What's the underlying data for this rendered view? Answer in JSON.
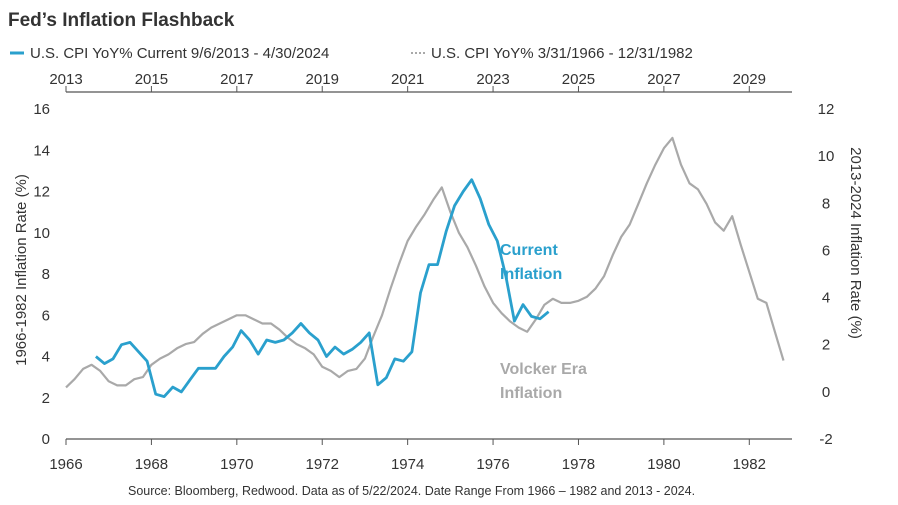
{
  "chart_data": {
    "type": "line",
    "title": "Fed’s Inflation Flashback",
    "source": "Source: Bloomberg, Redwood. Data as of 5/22/2024. Date Range From 1966 – 1982 and 2013 - 2024.",
    "left_axis": {
      "label": "1966-1982 Inflation Rate (%)",
      "ylim": [
        0,
        16
      ],
      "ticks": [
        0,
        2,
        4,
        6,
        8,
        10,
        12,
        14,
        16
      ]
    },
    "right_axis": {
      "label": "2013-2024 Inflation Rate (%)",
      "ylim": [
        -2,
        12
      ],
      "ticks": [
        -2,
        0,
        2,
        4,
        6,
        8,
        10,
        12
      ]
    },
    "bottom_axis": {
      "xlim": [
        1966,
        1983
      ],
      "ticks": [
        1966,
        1968,
        1970,
        1972,
        1974,
        1976,
        1978,
        1980,
        1982
      ]
    },
    "top_axis": {
      "xlim": [
        2013,
        2030
      ],
      "ticks": [
        2013,
        2015,
        2017,
        2019,
        2021,
        2023,
        2025,
        2027,
        2029
      ]
    },
    "annotations": [
      {
        "text": "Current",
        "series": "current"
      },
      {
        "text": "Inflation",
        "series": "current"
      },
      {
        "text": "Volcker Era",
        "series": "volcker"
      },
      {
        "text": "Inflation",
        "series": "volcker"
      }
    ],
    "series": [
      {
        "name": "U.S. CPI YoY% 3/31/1966 - 12/31/1982",
        "key": "volcker",
        "axis": "left",
        "color": "#a9a9a9",
        "x": [
          1966.0,
          1966.2,
          1966.4,
          1966.6,
          1966.8,
          1967.0,
          1967.2,
          1967.4,
          1967.6,
          1967.8,
          1968.0,
          1968.2,
          1968.4,
          1968.6,
          1968.8,
          1969.0,
          1969.2,
          1969.4,
          1969.6,
          1969.8,
          1970.0,
          1970.2,
          1970.4,
          1970.6,
          1970.8,
          1971.0,
          1971.2,
          1971.4,
          1971.6,
          1971.8,
          1972.0,
          1972.2,
          1972.4,
          1972.6,
          1972.8,
          1973.0,
          1973.2,
          1973.4,
          1973.6,
          1973.8,
          1974.0,
          1974.2,
          1974.4,
          1974.6,
          1974.8,
          1975.0,
          1975.2,
          1975.4,
          1975.6,
          1975.8,
          1976.0,
          1976.2,
          1976.4,
          1976.6,
          1976.8,
          1977.0,
          1977.2,
          1977.4,
          1977.6,
          1977.8,
          1978.0,
          1978.2,
          1978.4,
          1978.6,
          1978.8,
          1979.0,
          1979.2,
          1979.4,
          1979.6,
          1979.8,
          1980.0,
          1980.2,
          1980.4,
          1980.6,
          1980.8,
          1981.0,
          1981.2,
          1981.4,
          1981.6,
          1981.8,
          1982.0,
          1982.2,
          1982.4,
          1982.6,
          1982.8
        ],
        "y": [
          2.5,
          2.9,
          3.4,
          3.6,
          3.3,
          2.8,
          2.6,
          2.6,
          2.9,
          3.0,
          3.6,
          3.9,
          4.1,
          4.4,
          4.6,
          4.7,
          5.1,
          5.4,
          5.6,
          5.8,
          6.0,
          6.0,
          5.8,
          5.6,
          5.6,
          5.3,
          4.9,
          4.6,
          4.4,
          4.1,
          3.5,
          3.3,
          3.0,
          3.3,
          3.4,
          3.9,
          5.0,
          6.0,
          7.3,
          8.5,
          9.6,
          10.3,
          10.9,
          11.6,
          12.2,
          11.0,
          10.0,
          9.3,
          8.4,
          7.4,
          6.6,
          6.1,
          5.7,
          5.4,
          5.2,
          5.8,
          6.5,
          6.8,
          6.6,
          6.6,
          6.7,
          6.9,
          7.3,
          7.9,
          8.9,
          9.8,
          10.4,
          11.4,
          12.4,
          13.3,
          14.1,
          14.6,
          13.3,
          12.4,
          12.1,
          11.4,
          10.5,
          10.1,
          10.8,
          9.4,
          8.1,
          6.8,
          6.6,
          5.2,
          3.8
        ]
      },
      {
        "name": "U.S. CPI YoY% Current 9/6/2013 - 4/30/2024",
        "key": "current",
        "axis": "right",
        "color": "#2aa0cd",
        "x": [
          2013.7,
          2013.9,
          2014.1,
          2014.3,
          2014.5,
          2014.7,
          2014.9,
          2015.1,
          2015.3,
          2015.5,
          2015.7,
          2015.9,
          2016.1,
          2016.3,
          2016.5,
          2016.7,
          2016.9,
          2017.1,
          2017.3,
          2017.5,
          2017.7,
          2017.9,
          2018.1,
          2018.3,
          2018.5,
          2018.7,
          2018.9,
          2019.1,
          2019.3,
          2019.5,
          2019.7,
          2019.9,
          2020.1,
          2020.3,
          2020.5,
          2020.7,
          2020.9,
          2021.1,
          2021.3,
          2021.5,
          2021.7,
          2021.9,
          2022.1,
          2022.3,
          2022.5,
          2022.7,
          2022.9,
          2023.1,
          2023.3,
          2023.5,
          2023.7,
          2023.9,
          2024.1,
          2024.3
        ],
        "y": [
          1.5,
          1.2,
          1.4,
          2.0,
          2.1,
          1.7,
          1.3,
          -0.1,
          -0.2,
          0.2,
          0.0,
          0.5,
          1.0,
          1.0,
          1.0,
          1.5,
          1.9,
          2.6,
          2.2,
          1.6,
          2.2,
          2.1,
          2.2,
          2.5,
          2.9,
          2.5,
          2.2,
          1.5,
          1.9,
          1.6,
          1.8,
          2.1,
          2.5,
          0.3,
          0.6,
          1.4,
          1.3,
          1.7,
          4.2,
          5.4,
          5.4,
          6.8,
          7.9,
          8.5,
          9.0,
          8.2,
          7.1,
          6.4,
          4.9,
          3.0,
          3.7,
          3.2,
          3.1,
          3.4
        ]
      }
    ]
  },
  "legend": {
    "current_label": "U.S. CPI YoY% Current 9/6/2013 - 4/30/2024",
    "volcker_label": "U.S. CPI YoY% 3/31/1966 - 12/31/1982"
  }
}
